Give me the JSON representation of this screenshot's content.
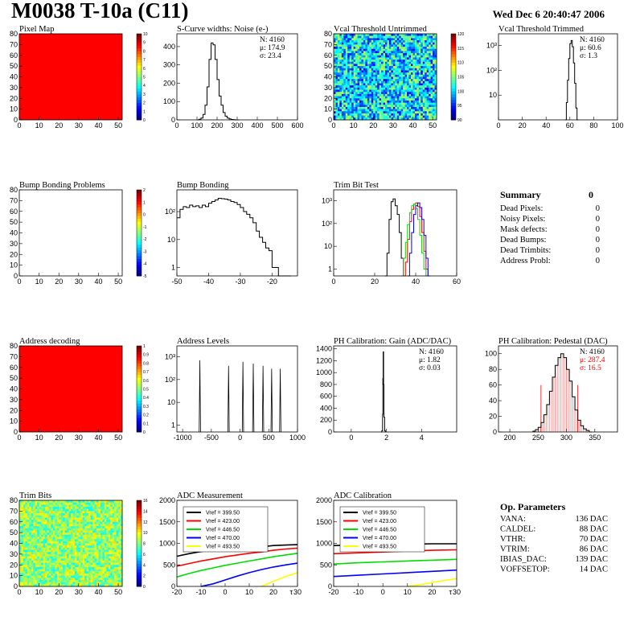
{
  "header": {
    "title": "M0038 T-10a (C11)",
    "date": "Wed Dec  6 20:40:47 2006"
  },
  "summary": {
    "title": "Summary",
    "total": "0",
    "rows": [
      {
        "label": "Dead Pixels:",
        "value": "0"
      },
      {
        "label": "Noisy Pixels:",
        "value": "0"
      },
      {
        "label": "Mask defects:",
        "value": "0"
      },
      {
        "label": "Dead Bumps:",
        "value": "0"
      },
      {
        "label": "Dead Trimbits:",
        "value": "0"
      },
      {
        "label": "Address Probl:",
        "value": "0"
      }
    ]
  },
  "op_params": {
    "title": "Op. Parameters",
    "rows": [
      {
        "label": "VANA:",
        "value": "136 DAC"
      },
      {
        "label": "CALDEL:",
        "value": "88 DAC"
      },
      {
        "label": "VTHR:",
        "value": "70 DAC"
      },
      {
        "label": "VTRIM:",
        "value": "86 DAC"
      },
      {
        "label": "IBIAS_DAC:",
        "value": "139 DAC"
      },
      {
        "label": "VOFFSETOP:",
        "value": "14 DAC"
      }
    ]
  },
  "colors": {
    "red": "#ff0000",
    "green": "#00dd00",
    "blue": "#0000ff",
    "yellow": "#ffff00",
    "black": "#000000"
  },
  "chart_data": [
    {
      "id": "pixelmap",
      "type": "heatmap",
      "title": "Pixel Map",
      "fill": "uniform-red",
      "xticks": [
        "0",
        "10",
        "20",
        "30",
        "40",
        "50"
      ],
      "yticks": [
        "0",
        "10",
        "20",
        "30",
        "40",
        "50",
        "60",
        "70",
        "80"
      ],
      "xlim": [
        0,
        52
      ],
      "ylim": [
        0,
        80
      ],
      "zticks": [
        "0",
        "1",
        "2",
        "3",
        "4",
        "5",
        "6",
        "7",
        "8",
        "9",
        "10"
      ]
    },
    {
      "id": "noise",
      "type": "line",
      "title": "S-Curve widths: Noise (e-)",
      "stats": [
        "N: 4160",
        "μ: 174.9",
        "σ: 23.4"
      ],
      "xticks": [
        "0",
        "100",
        "200",
        "300",
        "400",
        "500",
        "600"
      ],
      "yticks": [
        "0",
        "100",
        "200",
        "300",
        "400"
      ],
      "xlim": [
        0,
        600
      ],
      "ylim": [
        0,
        470
      ],
      "x": [
        100,
        110,
        120,
        130,
        140,
        150,
        160,
        170,
        180,
        190,
        200,
        210,
        220,
        230,
        240,
        250,
        260,
        270,
        280,
        290,
        300
      ],
      "y": [
        0,
        3,
        10,
        30,
        80,
        180,
        330,
        420,
        410,
        330,
        220,
        130,
        80,
        40,
        20,
        10,
        5,
        2,
        1,
        0,
        0
      ]
    },
    {
      "id": "vcal-untrimmed",
      "type": "heatmap",
      "title": "Vcal Threshold Untrimmed",
      "fill": "noise-green-blue",
      "xticks": [
        "0",
        "10",
        "20",
        "30",
        "40",
        "50"
      ],
      "yticks": [
        "0",
        "10",
        "20",
        "30",
        "40",
        "50",
        "60",
        "70",
        "80"
      ],
      "xlim": [
        0,
        52
      ],
      "ylim": [
        0,
        80
      ],
      "zticks": [
        "90",
        "95",
        "100",
        "105",
        "110",
        "115",
        "120"
      ]
    },
    {
      "id": "vcal-trimmed",
      "type": "line",
      "title": "Vcal Threshold Trimmed",
      "stats": [
        "N: 4160",
        "μ: 60.6",
        "σ:  1.3"
      ],
      "log": true,
      "xticks": [
        "0",
        "20",
        "40",
        "60",
        "80",
        "100"
      ],
      "yticks": [
        "10",
        "10²",
        "10³"
      ],
      "xlim": [
        0,
        100
      ],
      "ylim": [
        1,
        3000
      ],
      "x": [
        56,
        57,
        58,
        59,
        60,
        61,
        62,
        63,
        64,
        65,
        66
      ],
      "y": [
        1,
        5,
        40,
        300,
        1200,
        1600,
        900,
        200,
        30,
        3,
        1
      ]
    },
    {
      "id": "bump-problems",
      "type": "heatmap",
      "title": "Bump Bonding Problems",
      "fill": "empty",
      "xticks": [
        "0",
        "10",
        "20",
        "30",
        "40",
        "50"
      ],
      "yticks": [
        "0",
        "10",
        "20",
        "30",
        "40",
        "50",
        "60",
        "70",
        "80"
      ],
      "xlim": [
        0,
        52
      ],
      "ylim": [
        0,
        80
      ],
      "zticks": [
        "-5",
        "-4",
        "-3",
        "-2",
        "-1",
        "0",
        "1",
        "2"
      ]
    },
    {
      "id": "bump-bonding",
      "type": "line",
      "title": "Bump Bonding",
      "log": true,
      "xticks": [
        "-50",
        "-40",
        "-30",
        "-20"
      ],
      "yticks": [
        "1",
        "10",
        "10²"
      ],
      "xlim": [
        -50,
        -12
      ],
      "ylim": [
        0.5,
        600
      ],
      "x": [
        -50,
        -49,
        -48,
        -47,
        -46,
        -45,
        -44,
        -43,
        -42,
        -41,
        -40,
        -39,
        -38,
        -37,
        -36,
        -35,
        -34,
        -33,
        -32,
        -31,
        -30,
        -29,
        -28,
        -27,
        -26,
        -25,
        -24,
        -23,
        -22,
        -21,
        -20,
        -19,
        -18,
        -17,
        -16,
        -15
      ],
      "y": [
        60,
        120,
        150,
        140,
        170,
        150,
        160,
        140,
        170,
        150,
        200,
        230,
        260,
        300,
        290,
        280,
        260,
        230,
        210,
        180,
        140,
        100,
        80,
        60,
        40,
        20,
        12,
        8,
        5,
        4,
        1,
        1,
        0,
        0,
        0,
        0
      ]
    },
    {
      "id": "trim-bit-test",
      "type": "line",
      "title": "Trim Bit Test",
      "log": true,
      "xticks": [
        "0",
        "20",
        "40",
        "60"
      ],
      "yticks": [
        "1",
        "10",
        "10²",
        "10³"
      ],
      "xlim": [
        0,
        60
      ],
      "ylim": [
        0.5,
        3000
      ],
      "series": [
        {
          "color": "black",
          "x": [
            25,
            26,
            27,
            28,
            29,
            30,
            31,
            32,
            33,
            34
          ],
          "y": [
            0,
            5,
            150,
            900,
            1200,
            600,
            250,
            40,
            3,
            0
          ]
        },
        {
          "color": "red",
          "x": [
            34,
            35,
            36,
            37,
            38,
            39,
            40,
            41,
            42,
            43,
            44,
            45,
            46
          ],
          "y": [
            0,
            2,
            20,
            120,
            420,
            700,
            800,
            550,
            200,
            40,
            6,
            1,
            0
          ]
        },
        {
          "color": "green",
          "x": [
            33,
            34,
            35,
            36,
            37,
            38,
            39,
            40,
            41,
            42,
            43,
            44,
            45
          ],
          "y": [
            0,
            3,
            15,
            90,
            300,
            600,
            700,
            450,
            150,
            30,
            5,
            1,
            0
          ]
        },
        {
          "color": "blue",
          "x": [
            36,
            37,
            38,
            39,
            40,
            41,
            42,
            43,
            44,
            45,
            46
          ],
          "y": [
            0,
            5,
            40,
            250,
            600,
            800,
            500,
            150,
            30,
            3,
            0
          ]
        }
      ]
    },
    {
      "id": "address-decoding",
      "type": "heatmap",
      "title": "Address decoding",
      "fill": "uniform-red",
      "xticks": [
        "0",
        "10",
        "20",
        "30",
        "40",
        "50"
      ],
      "yticks": [
        "0",
        "10",
        "20",
        "30",
        "40",
        "50",
        "60",
        "70",
        "80"
      ],
      "xlim": [
        0,
        52
      ],
      "ylim": [
        0,
        80
      ],
      "zticks": [
        "0",
        "0.1",
        "0.2",
        "0.3",
        "0.4",
        "0.5",
        "0.6",
        "0.7",
        "0.8",
        "0.9",
        "1"
      ]
    },
    {
      "id": "address-levels",
      "type": "line",
      "title": "Address Levels",
      "log": true,
      "xticks": [
        "-1000",
        "-500",
        "0",
        "500",
        "1000"
      ],
      "yticks": [
        "1",
        "10",
        "10²",
        "10³"
      ],
      "xlim": [
        -1100,
        1000
      ],
      "ylim": [
        0.5,
        3000
      ],
      "peaks": [
        {
          "x": -700,
          "h": 700
        },
        {
          "x": -200,
          "h": 400
        },
        {
          "x": 50,
          "h": 600
        },
        {
          "x": 230,
          "h": 500
        },
        {
          "x": 400,
          "h": 400
        },
        {
          "x": 550,
          "h": 300
        },
        {
          "x": 700,
          "h": 300
        }
      ]
    },
    {
      "id": "ph-gain",
      "type": "line",
      "title": "PH Calibration: Gain (ADC/DAC)",
      "stats": [
        "N: 4160",
        "μ: 1.82",
        "σ: 0.03"
      ],
      "xticks": [
        "0",
        "2",
        "4"
      ],
      "yticks": [
        "0",
        "200",
        "400",
        "600",
        "800",
        "1000",
        "1200",
        "1400"
      ],
      "xlim": [
        -1,
        6
      ],
      "ylim": [
        0,
        1450
      ],
      "x": [
        1.7,
        1.74,
        1.78,
        1.8,
        1.82,
        1.84,
        1.86,
        1.9,
        1.94
      ],
      "y": [
        0,
        20,
        300,
        900,
        1350,
        800,
        250,
        20,
        0
      ]
    },
    {
      "id": "ph-pedestal",
      "type": "line",
      "title": "PH Calibration: Pedestal (DAC)",
      "stats": [
        "N: 4160",
        "μ: 287.4",
        "σ: 16.5"
      ],
      "statcolors": [
        "black",
        "red",
        "red"
      ],
      "xticks": [
        "200",
        "250",
        "300",
        "350"
      ],
      "yticks": [
        "0",
        "20",
        "40",
        "60",
        "80",
        "100"
      ],
      "xlim": [
        180,
        390
      ],
      "ylim": [
        0,
        110
      ],
      "fitlines": [
        255,
        320
      ],
      "x": [
        240,
        245,
        250,
        255,
        260,
        265,
        270,
        275,
        280,
        285,
        290,
        295,
        300,
        305,
        310,
        315,
        320,
        325,
        330,
        335,
        340
      ],
      "y": [
        1,
        3,
        6,
        12,
        22,
        35,
        52,
        70,
        85,
        95,
        100,
        95,
        80,
        65,
        45,
        28,
        15,
        8,
        4,
        2,
        0
      ]
    },
    {
      "id": "trim-bits",
      "type": "heatmap",
      "title": "Trim Bits",
      "fill": "noise-green-yellow",
      "xticks": [
        "0",
        "10",
        "20",
        "30",
        "40",
        "50"
      ],
      "yticks": [
        "0",
        "10",
        "20",
        "30",
        "40",
        "50",
        "60",
        "70",
        "80"
      ],
      "xlim": [
        0,
        52
      ],
      "ylim": [
        0,
        80
      ],
      "zticks": [
        "0",
        "2",
        "4",
        "6",
        "8",
        "10",
        "12",
        "14",
        "16"
      ]
    },
    {
      "id": "adc-measurement",
      "type": "line",
      "title": "ADC Measurement",
      "xticks": [
        "-20",
        "-10",
        "0",
        "10",
        "20",
        "30"
      ],
      "yticks": [
        "0",
        "500",
        "1000",
        "1500",
        "2000"
      ],
      "xlim": [
        -20,
        30
      ],
      "ylim": [
        0,
        2000
      ],
      "xunit": "τ",
      "series": [
        {
          "name": "Vref = 399.50",
          "color": "black",
          "x": [
            -20,
            -15,
            -10,
            -5,
            0,
            5,
            10,
            15,
            20,
            25,
            30
          ],
          "y": [
            700,
            760,
            810,
            850,
            880,
            900,
            910,
            920,
            950,
            960,
            970
          ]
        },
        {
          "name": "Vref = 423.00",
          "color": "red",
          "x": [
            -20,
            -15,
            -10,
            -5,
            0,
            5,
            10,
            15,
            20,
            25,
            30
          ],
          "y": [
            470,
            530,
            590,
            640,
            690,
            730,
            770,
            800,
            840,
            870,
            890
          ]
        },
        {
          "name": "Vref = 446.50",
          "color": "green",
          "x": [
            -20,
            -15,
            -10,
            -5,
            0,
            5,
            10,
            15,
            20,
            25,
            30
          ],
          "y": [
            220,
            300,
            370,
            430,
            490,
            540,
            590,
            640,
            690,
            730,
            770
          ]
        },
        {
          "name": "Vref = 470.00",
          "color": "blue",
          "x": [
            -10,
            -5,
            0,
            5,
            10,
            15,
            20,
            25,
            30
          ],
          "y": [
            0,
            60,
            150,
            240,
            320,
            390,
            450,
            500,
            540
          ]
        },
        {
          "name": "Vref = 493.50",
          "color": "yellow",
          "x": [
            15,
            20,
            25,
            30
          ],
          "y": [
            0,
            120,
            230,
            320
          ]
        }
      ]
    },
    {
      "id": "adc-calibration",
      "type": "line",
      "title": "ADC Calibration",
      "xticks": [
        "-20",
        "-10",
        "0",
        "10",
        "20",
        "30"
      ],
      "yticks": [
        "0",
        "500",
        "1000",
        "1500",
        "2000"
      ],
      "xlim": [
        -20,
        30
      ],
      "ylim": [
        0,
        2000
      ],
      "xunit": "τ",
      "series": [
        {
          "name": "Vref = 399.50",
          "color": "black",
          "x": [
            -20,
            -10,
            0,
            10,
            20,
            30
          ],
          "y": [
            950,
            960,
            970,
            980,
            990,
            990
          ]
        },
        {
          "name": "Vref = 423.00",
          "color": "red",
          "x": [
            -20,
            -10,
            0,
            10,
            20,
            30
          ],
          "y": [
            760,
            780,
            800,
            820,
            840,
            850
          ]
        },
        {
          "name": "Vref = 446.50",
          "color": "green",
          "x": [
            -20,
            -10,
            0,
            10,
            20,
            30
          ],
          "y": [
            520,
            550,
            570,
            590,
            610,
            630
          ]
        },
        {
          "name": "Vref = 470.00",
          "color": "blue",
          "x": [
            -20,
            -10,
            0,
            10,
            20,
            30
          ],
          "y": [
            230,
            260,
            290,
            320,
            350,
            380
          ]
        },
        {
          "name": "Vref = 493.50",
          "color": "yellow",
          "x": [
            10,
            15,
            20,
            25,
            30
          ],
          "y": [
            0,
            40,
            90,
            140,
            180
          ]
        }
      ]
    }
  ]
}
